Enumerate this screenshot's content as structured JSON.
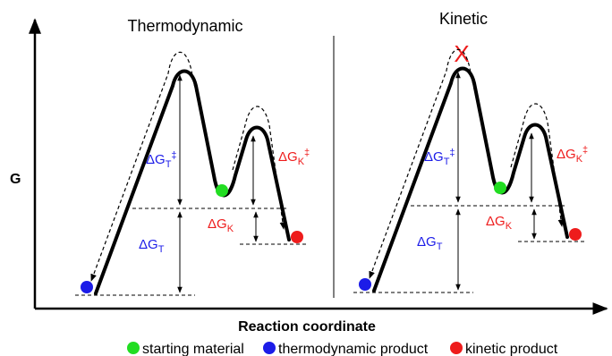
{
  "axes": {
    "y_label": "G",
    "x_label": "Reaction coordinate"
  },
  "panels": {
    "thermo": {
      "title": "Thermodynamic",
      "dGT_act": {
        "main": "ΔG",
        "sub": "T",
        "sup": "‡"
      },
      "dGK_act": {
        "main": "ΔG",
        "sub": "K",
        "sup": "‡"
      },
      "dGK": {
        "main": "ΔG",
        "sub": "K"
      },
      "dGT": {
        "main": "ΔG",
        "sub": "T"
      }
    },
    "kinetic": {
      "title": "Kinetic",
      "blocked_mark": "X",
      "dGT_act": {
        "main": "ΔG",
        "sub": "T",
        "sup": "‡"
      },
      "dGK_act": {
        "main": "ΔG",
        "sub": "K",
        "sup": "‡"
      },
      "dGK": {
        "main": "ΔG",
        "sub": "K"
      },
      "dGT": {
        "main": "ΔG",
        "sub": "T"
      }
    }
  },
  "legend": {
    "starting": "starting material",
    "thermo": "thermodynamic product",
    "kinetic": "kinetic product"
  },
  "colors": {
    "starting": "#22dd22",
    "thermo": "#1c1ce8",
    "kinetic": "#ee1c1c",
    "mark": "#ee1c1c"
  }
}
